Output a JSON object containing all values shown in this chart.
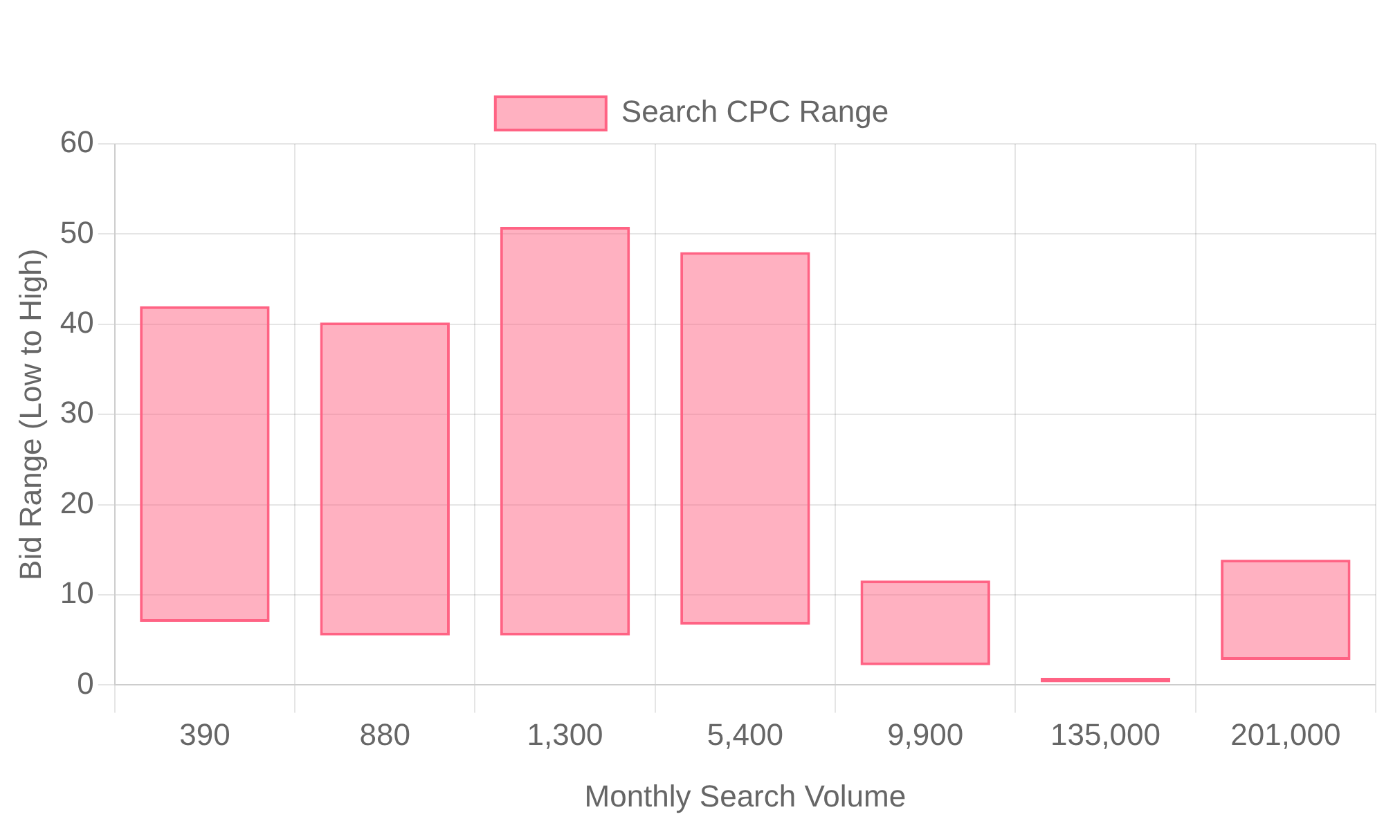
{
  "chart_data": {
    "type": "bar",
    "xlabel": "Monthly Search Volume",
    "ylabel": "Bid Range (Low to High)",
    "categories": [
      "390",
      "880",
      "1,300",
      "5,400",
      "9,900",
      "135,000",
      "201,000"
    ],
    "series": [
      {
        "name": "Search CPC Range",
        "color": "#ff6384",
        "values": [
          35,
          34.7,
          45.3,
          41.3,
          9.4,
          0.5,
          11.1
        ],
        "base": [
          7,
          5.5,
          5.5,
          6.7,
          2.2,
          0.3,
          2.8
        ]
      }
    ],
    "ylim": [
      0,
      60
    ],
    "yticks": [
      0,
      10,
      20,
      30,
      40,
      50,
      60
    ],
    "grid": true,
    "legend": "top"
  }
}
